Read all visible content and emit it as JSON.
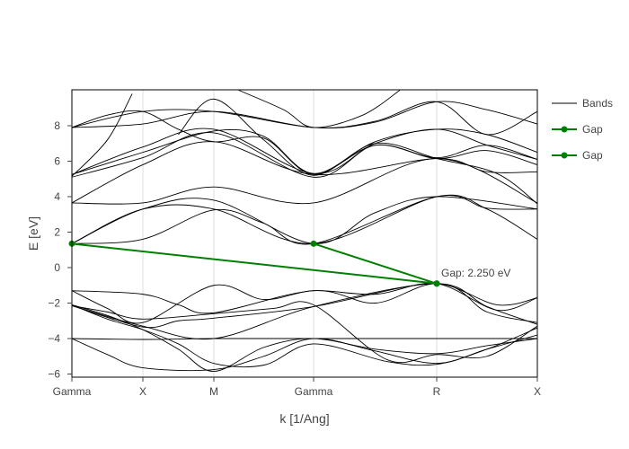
{
  "chart_data": {
    "type": "line",
    "title": "",
    "xlabel": "k [1/Ang]",
    "ylabel": "E [eV]",
    "ylim": [
      -6.1,
      10.1
    ],
    "yticks": [
      -6,
      -4,
      -2,
      0,
      2,
      4,
      6,
      8
    ],
    "ytick_labels": [
      "−6",
      "−4",
      "−2",
      "0",
      "2",
      "4",
      "6",
      "8"
    ],
    "xticks": [
      0,
      1,
      2,
      3,
      4,
      5
    ],
    "xtick_labels": [
      "Gamma",
      "X",
      "M",
      "Gamma",
      "R",
      "X"
    ],
    "grid": {
      "x": true,
      "y": false
    },
    "legend": {
      "position": "right",
      "entries": [
        "Bands",
        "Gap",
        "Gap"
      ]
    },
    "annotations": [
      {
        "text": "Gap: 2.250 eV",
        "x": 4,
        "y": -0.9
      }
    ],
    "gap": {
      "value_eV": 2.25,
      "vbm": {
        "k": 4,
        "E": -0.9
      },
      "cbm": [
        {
          "k": 0,
          "E": 1.35
        },
        {
          "k": 3,
          "E": 1.35
        }
      ]
    },
    "series": [
      {
        "name": "Bands",
        "color": "#000000",
        "bands": [
          [
            [
              0,
              -4.0
            ],
            [
              1,
              -4.05
            ],
            [
              2,
              -4.0
            ],
            [
              3,
              -4.0
            ],
            [
              4,
              -4.0
            ],
            [
              5,
              -4.0
            ]
          ],
          [
            [
              0,
              -4.0
            ],
            [
              0.5,
              -4.9
            ],
            [
              1,
              -5.65
            ],
            [
              2,
              -5.75
            ],
            [
              2.5,
              -5.0
            ],
            [
              3,
              -4.0
            ],
            [
              3.5,
              -4.7
            ],
            [
              4,
              -5.4
            ],
            [
              4.5,
              -4.6
            ],
            [
              5,
              -3.8
            ]
          ],
          [
            [
              0,
              -2.1
            ],
            [
              0.5,
              -2.7
            ],
            [
              1,
              -3.5
            ],
            [
              1.5,
              -4.6
            ],
            [
              2,
              -5.85
            ],
            [
              2.5,
              -4.5
            ],
            [
              3,
              -4.0
            ],
            [
              3.5,
              -4.6
            ],
            [
              4,
              -4.85
            ],
            [
              4.5,
              -4.4
            ],
            [
              5,
              -4.0
            ]
          ],
          [
            [
              0,
              -2.1
            ],
            [
              0.5,
              -2.9
            ],
            [
              1,
              -3.5
            ],
            [
              1.5,
              -4.3
            ],
            [
              2,
              -5.4
            ],
            [
              2.5,
              -5.5
            ],
            [
              3,
              -4.3
            ],
            [
              3.6,
              -5.3
            ],
            [
              4,
              -5.45
            ],
            [
              4.5,
              -4.6
            ],
            [
              5,
              -3.4
            ]
          ],
          [
            [
              0,
              -2.15
            ],
            [
              1,
              -3.3
            ],
            [
              2,
              -4.0
            ],
            [
              3,
              -2.2
            ],
            [
              4,
              -0.9
            ],
            [
              4.5,
              -2.2
            ],
            [
              5,
              -3.2
            ]
          ],
          [
            [
              0,
              -2.15
            ],
            [
              1,
              -3.35
            ],
            [
              1.5,
              -3.0
            ],
            [
              2,
              -2.85
            ],
            [
              3,
              -2.2
            ],
            [
              4,
              -0.9
            ],
            [
              4.5,
              -2.5
            ],
            [
              5,
              -3.1
            ]
          ],
          [
            [
              0,
              -1.3
            ],
            [
              1,
              -1.5
            ],
            [
              1.5,
              -2.1
            ],
            [
              2,
              -2.55
            ],
            [
              3,
              -1.3
            ],
            [
              3.5,
              -2.0
            ],
            [
              4,
              -0.9
            ],
            [
              4.6,
              -2.1
            ],
            [
              5,
              -1.7
            ]
          ],
          [
            [
              0,
              -1.3
            ],
            [
              0.5,
              -2.3
            ],
            [
              1,
              -3.1
            ],
            [
              2,
              -1.0
            ],
            [
              2.5,
              -1.8
            ],
            [
              3,
              -1.3
            ],
            [
              3.5,
              -1.5
            ],
            [
              4,
              -0.9
            ],
            [
              4.6,
              -2.4
            ],
            [
              5,
              -1.7
            ]
          ],
          [
            [
              0,
              -2.15
            ],
            [
              0.5,
              -2.5
            ],
            [
              1,
              -2.9
            ],
            [
              2,
              -2.6
            ],
            [
              2.6,
              -2.3
            ],
            [
              3,
              -2.1
            ],
            [
              3.6,
              -5.2
            ],
            [
              4,
              -4.9
            ],
            [
              4.5,
              -5.0
            ],
            [
              5,
              -3.3
            ]
          ],
          [
            [
              0,
              1.35
            ],
            [
              1,
              1.6
            ],
            [
              2,
              3.25
            ],
            [
              2.5,
              2.5
            ],
            [
              3,
              1.35
            ],
            [
              4,
              4.0
            ],
            [
              4.5,
              3.3
            ],
            [
              5,
              1.6
            ]
          ],
          [
            [
              0,
              1.35
            ],
            [
              1,
              3.3
            ],
            [
              2,
              3.3
            ],
            [
              3,
              1.35
            ],
            [
              4,
              4.0
            ],
            [
              4.5,
              3.35
            ],
            [
              5,
              3.3
            ]
          ],
          [
            [
              0,
              1.35
            ],
            [
              1,
              3.3
            ],
            [
              2,
              3.8
            ],
            [
              3,
              1.35
            ],
            [
              3.5,
              3.1
            ],
            [
              4,
              4.0
            ],
            [
              5,
              3.3
            ]
          ],
          [
            [
              0,
              3.65
            ],
            [
              1,
              3.65
            ],
            [
              2,
              4.55
            ],
            [
              3,
              3.65
            ],
            [
              4,
              6.15
            ],
            [
              5,
              3.65
            ]
          ],
          [
            [
              0,
              3.65
            ],
            [
              1,
              5.8
            ],
            [
              2,
              7.1
            ],
            [
              3,
              5.25
            ],
            [
              4,
              6.15
            ],
            [
              4.5,
              5.4
            ],
            [
              5,
              5.4
            ]
          ],
          [
            [
              0,
              5.1
            ],
            [
              1,
              6.2
            ],
            [
              2,
              7.6
            ],
            [
              3,
              5.1
            ],
            [
              3.5,
              6.9
            ],
            [
              4,
              6.15
            ],
            [
              4.5,
              6.6
            ],
            [
              5,
              5.8
            ]
          ],
          [
            [
              0,
              5.25
            ],
            [
              1,
              6.8
            ],
            [
              2,
              7.8
            ],
            [
              3,
              5.3
            ],
            [
              3.5,
              7.0
            ],
            [
              4,
              7.8
            ],
            [
              4.5,
              6.9
            ],
            [
              5,
              6.1
            ]
          ],
          [
            [
              0,
              5.25
            ],
            [
              1,
              6.5
            ],
            [
              2,
              7.7
            ],
            [
              2.5,
              7.4
            ],
            [
              3,
              5.3
            ],
            [
              3.5,
              7.1
            ],
            [
              4,
              7.8
            ],
            [
              4.5,
              7.5
            ],
            [
              5,
              6.5
            ]
          ],
          [
            [
              0,
              7.9
            ],
            [
              1,
              8.1
            ],
            [
              2,
              8.8
            ],
            [
              3,
              7.9
            ],
            [
              3.5,
              8.2
            ],
            [
              4,
              9.35
            ],
            [
              4.5,
              8.9
            ],
            [
              5,
              8.1
            ]
          ],
          [
            [
              0,
              7.9
            ],
            [
              1,
              8.8
            ],
            [
              2,
              8.8
            ],
            [
              3,
              7.9
            ],
            [
              3.5,
              8.25
            ],
            [
              4,
              9.35
            ],
            [
              4.5,
              7.5
            ],
            [
              5,
              8.8
            ]
          ],
          [
            [
              0,
              7.9
            ],
            [
              0.5,
              8.6
            ],
            [
              1,
              8.8
            ],
            [
              1.5,
              7.8
            ],
            [
              2,
              7.1
            ],
            [
              2.5,
              7.3
            ],
            [
              3,
              5.25
            ],
            [
              3.5,
              6.9
            ],
            [
              4,
              6.2
            ],
            [
              4.5,
              6.9
            ],
            [
              5,
              6.1
            ]
          ],
          [
            [
              0,
              5.15
            ],
            [
              0.5,
              7.2
            ],
            [
              0.85,
              9.8
            ]
          ],
          [
            [
              1.5,
              7.5
            ],
            [
              2,
              9.5
            ],
            [
              2.5,
              7.2
            ],
            [
              3,
              5.2
            ],
            [
              3.5,
              7.0
            ],
            [
              4,
              6.15
            ],
            [
              4.6,
              5.3
            ],
            [
              5,
              3.6
            ]
          ],
          [
            [
              2.25,
              10.0
            ],
            [
              2.7,
              8.9
            ],
            [
              3,
              7.9
            ],
            [
              3.4,
              8.6
            ],
            [
              3.7,
              10.0
            ]
          ]
        ]
      },
      {
        "name": "Gap",
        "color": "#008000",
        "points": [
          [
            0,
            1.35
          ],
          [
            4,
            -0.9
          ]
        ]
      },
      {
        "name": "Gap",
        "color": "#008000",
        "points": [
          [
            3,
            1.35
          ],
          [
            4,
            -0.9
          ]
        ]
      }
    ]
  },
  "legend": {
    "items": [
      {
        "label": "Bands"
      },
      {
        "label": "Gap"
      },
      {
        "label": "Gap"
      }
    ]
  },
  "axes": {
    "xlabel": "k [1/Ang]",
    "ylabel": "E [eV]"
  },
  "annotation": {
    "text": "Gap: 2.250 eV"
  }
}
